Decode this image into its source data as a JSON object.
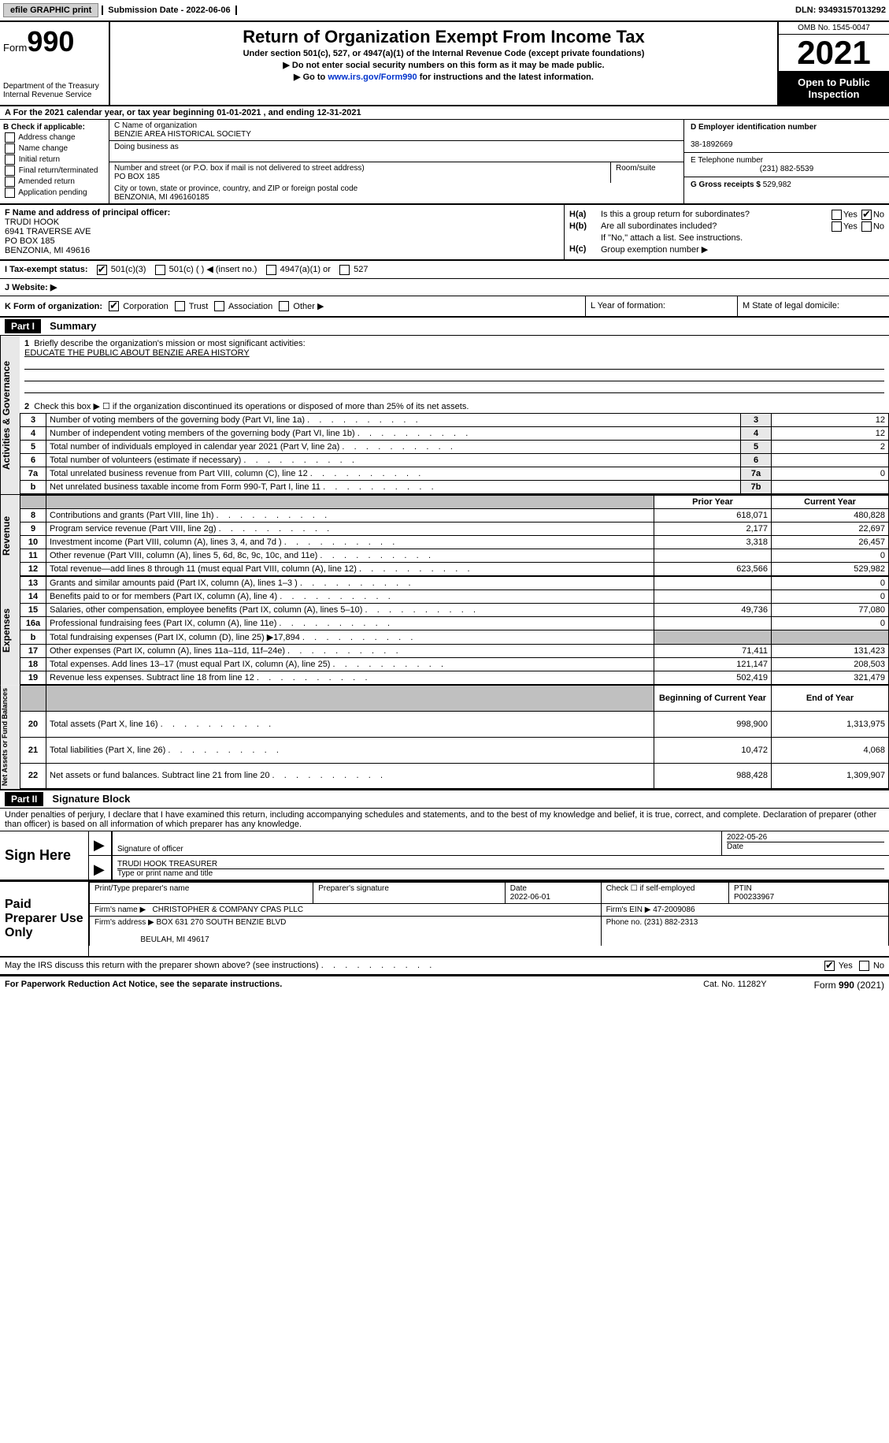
{
  "topbar": {
    "efile": "efile GRAPHIC print",
    "sub_label": "Submission Date - 2022-06-06",
    "dln": "DLN: 93493157013292"
  },
  "header": {
    "form_label": "Form",
    "form_num": "990",
    "dept": "Department of the Treasury Internal Revenue Service",
    "title": "Return of Organization Exempt From Income Tax",
    "sub1": "Under section 501(c), 527, or 4947(a)(1) of the Internal Revenue Code (except private foundations)",
    "sub2": "▶ Do not enter social security numbers on this form as it may be made public.",
    "sub3_pre": "▶ Go to ",
    "sub3_link": "www.irs.gov/Form990",
    "sub3_post": " for instructions and the latest information.",
    "omb": "OMB No. 1545-0047",
    "year": "2021",
    "open": "Open to Public Inspection"
  },
  "row_a": "A For the 2021 calendar year, or tax year beginning 01-01-2021   , and ending 12-31-2021",
  "col_b": {
    "label": "B Check if applicable:",
    "addr": "Address change",
    "name": "Name change",
    "init": "Initial return",
    "final": "Final return/terminated",
    "amend": "Amended return",
    "app": "Application pending"
  },
  "col_c": {
    "name_label": "C Name of organization",
    "name": "BENZIE AREA HISTORICAL SOCIETY",
    "dba_label": "Doing business as",
    "dba": "",
    "street_label": "Number and street (or P.O. box if mail is not delivered to street address)",
    "street": "PO BOX 185",
    "room_label": "Room/suite",
    "room": "",
    "city_label": "City or town, state or province, country, and ZIP or foreign postal code",
    "city": "BENZONIA, MI  496160185"
  },
  "col_d": {
    "d_label": "D Employer identification number",
    "d_val": "38-1892669",
    "e_label": "E Telephone number",
    "e_val": "(231) 882-5539",
    "g_label": "G Gross receipts $",
    "g_val": "529,982"
  },
  "col_f": {
    "label": "F  Name and address of principal officer:",
    "l1": "TRUDI HOOK",
    "l2": "6941 TRAVERSE AVE",
    "l3": "PO BOX 185",
    "l4": "BENZONIA, MI  49616"
  },
  "col_h": {
    "ha_l": "H(a)",
    "ha_t": "Is this a group return for subordinates?",
    "hb_l": "H(b)",
    "hb_t": "Are all subordinates included?",
    "hb_note": "If \"No,\" attach a list. See instructions.",
    "hc_l": "H(c)",
    "hc_t": "Group exemption number ▶",
    "yes": "Yes",
    "no": "No"
  },
  "row_i": {
    "label": "I  Tax-exempt status:",
    "o1": "501(c)(3)",
    "o2": "501(c) (  ) ◀ (insert no.)",
    "o3": "4947(a)(1) or",
    "o4": "527"
  },
  "row_j": {
    "label": "J  Website: ▶"
  },
  "row_k": {
    "k": "K Form of organization:",
    "corp": "Corporation",
    "trust": "Trust",
    "assoc": "Association",
    "other": "Other ▶",
    "l": "L Year of formation:",
    "m": "M State of legal domicile:"
  },
  "part1": {
    "hdr": "Part I",
    "title": "Summary",
    "q1_label": "1",
    "q1": "Briefly describe the organization's mission or most significant activities:",
    "q1_val": "EDUCATE THE PUBLIC ABOUT BENZIE AREA HISTORY",
    "q2_label": "2",
    "q2": "Check this box ▶ ☐  if the organization discontinued its operations or disposed of more than 25% of its net assets.",
    "rows": [
      {
        "n": "3",
        "d": "Number of voting members of the governing body (Part VI, line 1a)",
        "b": "3",
        "v": "12"
      },
      {
        "n": "4",
        "d": "Number of independent voting members of the governing body (Part VI, line 1b)",
        "b": "4",
        "v": "12"
      },
      {
        "n": "5",
        "d": "Total number of individuals employed in calendar year 2021 (Part V, line 2a)",
        "b": "5",
        "v": "2"
      },
      {
        "n": "6",
        "d": "Total number of volunteers (estimate if necessary)",
        "b": "6",
        "v": ""
      },
      {
        "n": "7a",
        "d": "Total unrelated business revenue from Part VIII, column (C), line 12",
        "b": "7a",
        "v": "0"
      },
      {
        "n": "b",
        "d": "Net unrelated business taxable income from Form 990-T, Part I, line 11",
        "b": "7b",
        "v": ""
      }
    ],
    "py_hdr": "Prior Year",
    "cy_hdr": "Current Year",
    "rev_rows": [
      {
        "n": "8",
        "d": "Contributions and grants (Part VIII, line 1h)",
        "p": "618,071",
        "c": "480,828"
      },
      {
        "n": "9",
        "d": "Program service revenue (Part VIII, line 2g)",
        "p": "2,177",
        "c": "22,697"
      },
      {
        "n": "10",
        "d": "Investment income (Part VIII, column (A), lines 3, 4, and 7d )",
        "p": "3,318",
        "c": "26,457"
      },
      {
        "n": "11",
        "d": "Other revenue (Part VIII, column (A), lines 5, 6d, 8c, 9c, 10c, and 11e)",
        "p": "",
        "c": "0"
      },
      {
        "n": "12",
        "d": "Total revenue—add lines 8 through 11 (must equal Part VIII, column (A), line 12)",
        "p": "623,566",
        "c": "529,982"
      }
    ],
    "exp_rows": [
      {
        "n": "13",
        "d": "Grants and similar amounts paid (Part IX, column (A), lines 1–3 )",
        "p": "",
        "c": "0"
      },
      {
        "n": "14",
        "d": "Benefits paid to or for members (Part IX, column (A), line 4)",
        "p": "",
        "c": "0"
      },
      {
        "n": "15",
        "d": "Salaries, other compensation, employee benefits (Part IX, column (A), lines 5–10)",
        "p": "49,736",
        "c": "77,080"
      },
      {
        "n": "16a",
        "d": "Professional fundraising fees (Part IX, column (A), line 11e)",
        "p": "",
        "c": "0"
      },
      {
        "n": "b",
        "d": "Total fundraising expenses (Part IX, column (D), line 25) ▶17,894",
        "p": "shade",
        "c": "shade"
      },
      {
        "n": "17",
        "d": "Other expenses (Part IX, column (A), lines 11a–11d, 11f–24e)",
        "p": "71,411",
        "c": "131,423"
      },
      {
        "n": "18",
        "d": "Total expenses. Add lines 13–17 (must equal Part IX, column (A), line 25)",
        "p": "121,147",
        "c": "208,503"
      },
      {
        "n": "19",
        "d": "Revenue less expenses. Subtract line 18 from line 12",
        "p": "502,419",
        "c": "321,479"
      }
    ],
    "by_hdr": "Beginning of Current Year",
    "ey_hdr": "End of Year",
    "net_rows": [
      {
        "n": "20",
        "d": "Total assets (Part X, line 16)",
        "p": "998,900",
        "c": "1,313,975"
      },
      {
        "n": "21",
        "d": "Total liabilities (Part X, line 26)",
        "p": "10,472",
        "c": "4,068"
      },
      {
        "n": "22",
        "d": "Net assets or fund balances. Subtract line 21 from line 20",
        "p": "988,428",
        "c": "1,309,907"
      }
    ]
  },
  "sidelabels": {
    "gov": "Activities & Governance",
    "rev": "Revenue",
    "exp": "Expenses",
    "net": "Net Assets or Fund Balances"
  },
  "part2": {
    "hdr": "Part II",
    "title": "Signature Block",
    "decl": "Under penalties of perjury, I declare that I have examined this return, including accompanying schedules and statements, and to the best of my knowledge and belief, it is true, correct, and complete. Declaration of preparer (other than officer) is based on all information of which preparer has any knowledge.",
    "sign_here": "Sign Here",
    "sig_officer": "Signature of officer",
    "sig_date_lbl": "Date",
    "sig_date": "2022-05-26",
    "sig_name": "TRUDI HOOK  TREASURER",
    "sig_name_lbl": "Type or print name and title",
    "paid": "Paid Preparer Use Only",
    "prep_name_lbl": "Print/Type preparer's name",
    "prep_sig_lbl": "Preparer's signature",
    "prep_date_lbl": "Date",
    "prep_date": "2022-06-01",
    "prep_check_lbl": "Check ☐ if self-employed",
    "ptin_lbl": "PTIN",
    "ptin": "P00233967",
    "firm_name_lbl": "Firm's name    ▶",
    "firm_name": "CHRISTOPHER & COMPANY CPAS PLLC",
    "firm_ein_lbl": "Firm's EIN ▶",
    "firm_ein": "47-2009086",
    "firm_addr_lbl": "Firm's address ▶",
    "firm_addr1": "BOX 631 270 SOUTH BENZIE BLVD",
    "firm_addr2": "BEULAH, MI  49617",
    "phone_lbl": "Phone no.",
    "phone": "(231) 882-2313",
    "discuss": "May the IRS discuss this return with the preparer shown above? (see instructions)",
    "yes": "Yes",
    "no": "No"
  },
  "footer": {
    "l": "For Paperwork Reduction Act Notice, see the separate instructions.",
    "m": "Cat. No. 11282Y",
    "r": "Form 990 (2021)"
  }
}
